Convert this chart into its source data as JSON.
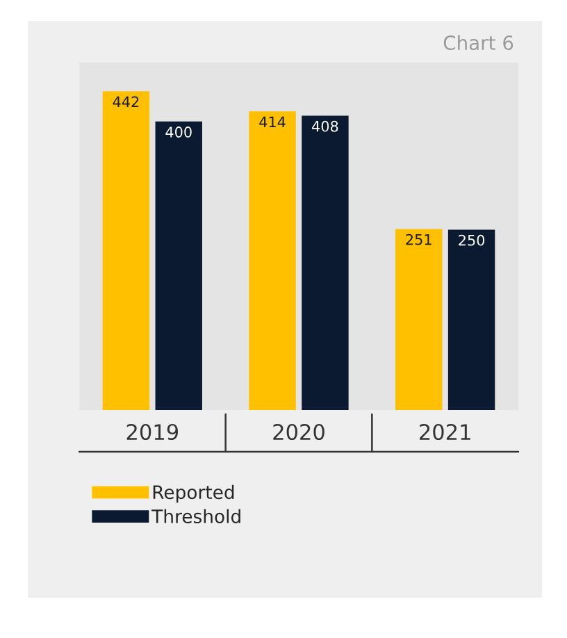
{
  "chart_data": {
    "type": "bar",
    "title": "Chart 6",
    "categories": [
      "2019",
      "2020",
      "2021"
    ],
    "series": [
      {
        "name": "Reported",
        "color": "#ffc000",
        "values": [
          442,
          414,
          251
        ]
      },
      {
        "name": "Threshold",
        "color": "#0b1a30",
        "values": [
          400,
          408,
          250
        ]
      }
    ],
    "data_labels": true,
    "legend": "bottom",
    "grid": false
  }
}
